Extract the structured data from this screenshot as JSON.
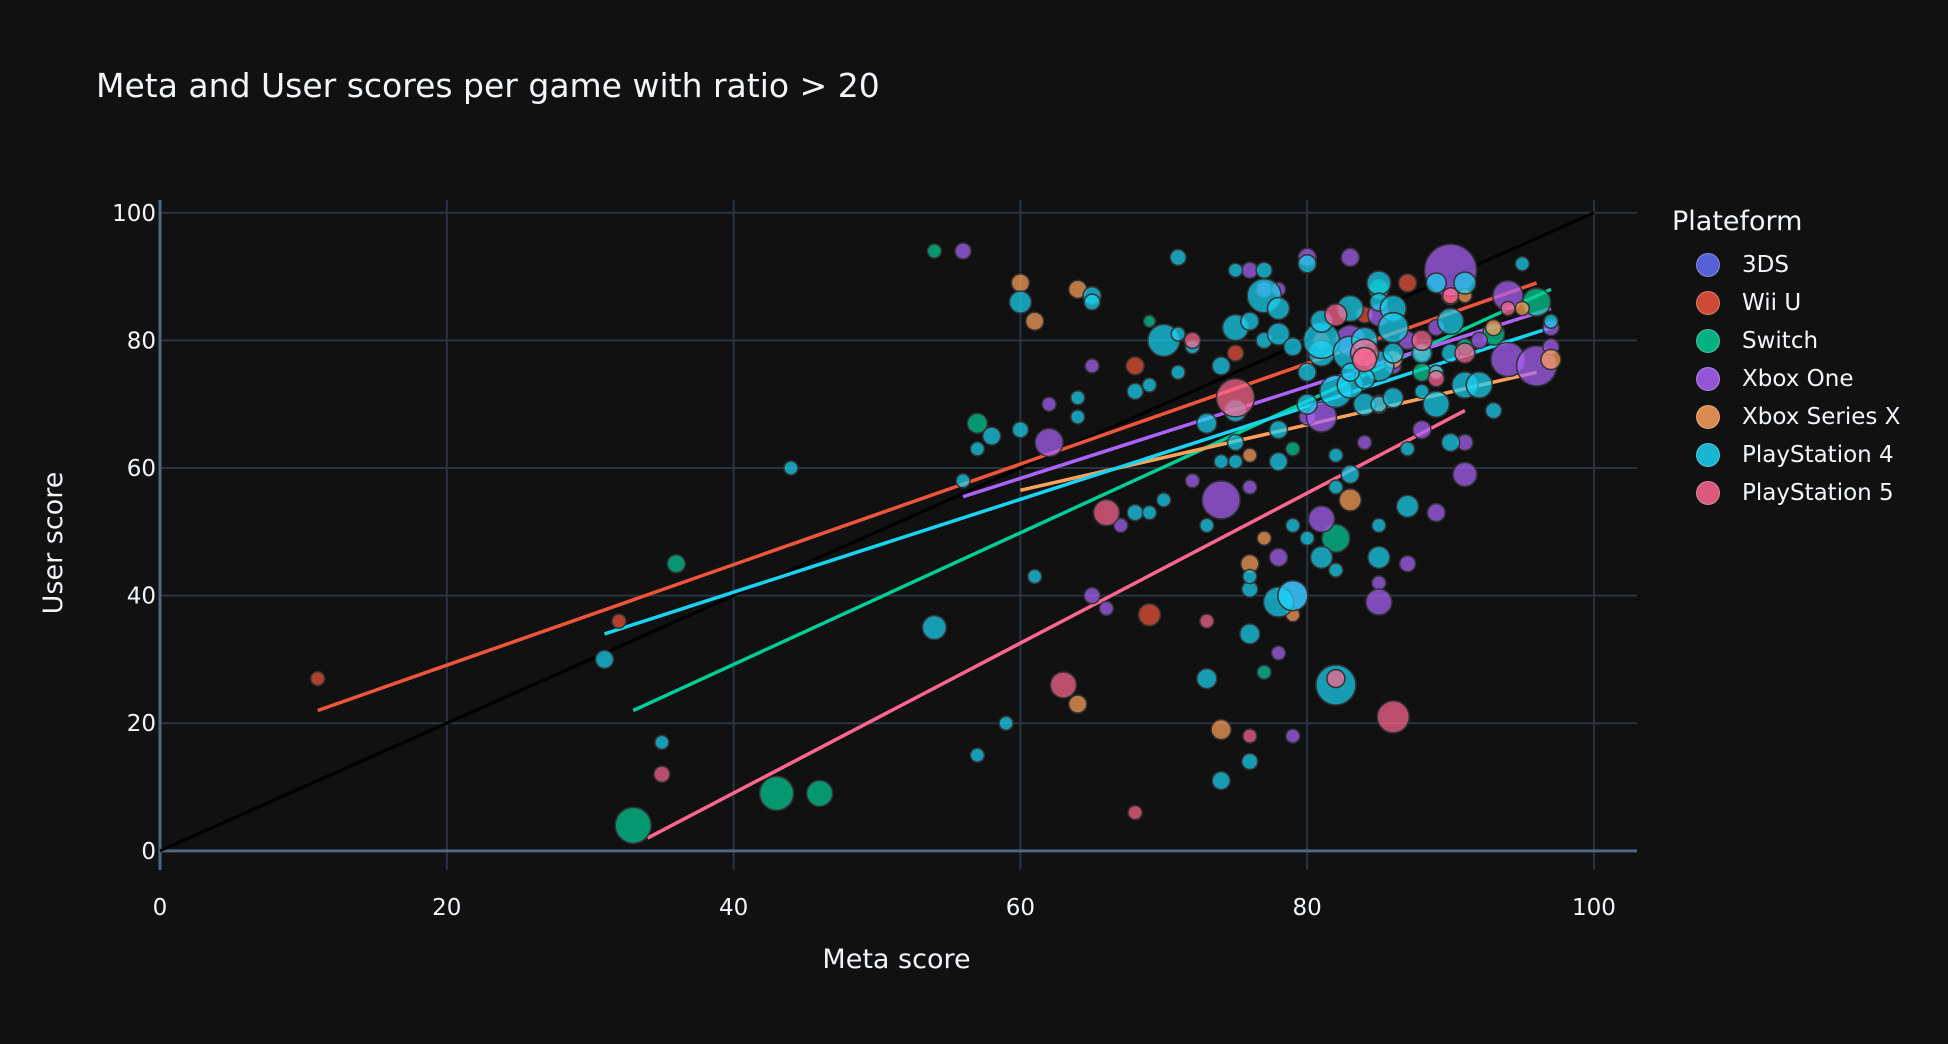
{
  "chart_data": {
    "type": "scatter",
    "title": "Meta and User scores per game with ratio > 20",
    "xlabel": "Meta score",
    "ylabel": "User score",
    "xlim": [
      0,
      103
    ],
    "ylim": [
      -3,
      102
    ],
    "xticks": [
      0,
      20,
      40,
      60,
      80,
      100
    ],
    "yticks": [
      0,
      20,
      40,
      60,
      80,
      100
    ],
    "grid": true,
    "legend_title": "Plateform",
    "legend_position": "right",
    "diagonal": {
      "x": [
        0,
        100
      ],
      "y": [
        0,
        100
      ],
      "color": "#000000"
    },
    "series": [
      {
        "name": "3DS",
        "color": "#636efa",
        "points": [],
        "trend": null
      },
      {
        "name": "Wii U",
        "color": "#ef553b",
        "points": [
          [
            11,
            27,
            14
          ],
          [
            32,
            36,
            14
          ],
          [
            69,
            37,
            22
          ],
          [
            68,
            76,
            18
          ],
          [
            75,
            78,
            16
          ],
          [
            81,
            80,
            16
          ],
          [
            84,
            84,
            16
          ],
          [
            87,
            89,
            18
          ],
          [
            90,
            87,
            18
          ],
          [
            85,
            70,
            18
          ]
        ],
        "trend": [
          [
            11,
            22
          ],
          [
            96,
            89
          ]
        ]
      },
      {
        "name": "Switch",
        "color": "#00cc96",
        "points": [
          [
            33,
            4,
            36
          ],
          [
            43,
            9,
            34
          ],
          [
            46,
            9,
            26
          ],
          [
            36,
            45,
            18
          ],
          [
            54,
            94,
            14
          ],
          [
            57,
            67,
            20
          ],
          [
            69,
            83,
            12
          ],
          [
            77,
            28,
            14
          ],
          [
            82,
            49,
            28
          ],
          [
            85,
            88,
            20
          ],
          [
            93,
            81,
            22
          ],
          [
            96,
            86,
            28
          ],
          [
            91,
            79,
            16
          ],
          [
            79,
            63,
            14
          ],
          [
            88,
            75,
            18
          ]
        ],
        "trend": [
          [
            33,
            22
          ],
          [
            97,
            88
          ]
        ]
      },
      {
        "name": "Xbox One",
        "color": "#ab63fa",
        "points": [
          [
            56,
            94,
            16
          ],
          [
            62,
            64,
            28
          ],
          [
            65,
            76,
            14
          ],
          [
            62,
            70,
            14
          ],
          [
            66,
            38,
            14
          ],
          [
            65,
            40,
            16
          ],
          [
            67,
            51,
            14
          ],
          [
            72,
            58,
            14
          ],
          [
            74,
            55,
            38
          ],
          [
            76,
            91,
            16
          ],
          [
            77,
            88,
            16
          ],
          [
            78,
            88,
            14
          ],
          [
            78,
            46,
            18
          ],
          [
            79,
            40,
            30
          ],
          [
            80,
            93,
            18
          ],
          [
            80,
            68,
            16
          ],
          [
            81,
            52,
            26
          ],
          [
            81,
            68,
            30
          ],
          [
            83,
            93,
            18
          ],
          [
            84,
            64,
            14
          ],
          [
            85,
            42,
            14
          ],
          [
            85,
            39,
            26
          ],
          [
            87,
            45,
            16
          ],
          [
            88,
            66,
            18
          ],
          [
            89,
            53,
            18
          ],
          [
            90,
            91,
            52
          ],
          [
            91,
            59,
            24
          ],
          [
            91,
            64,
            16
          ],
          [
            92,
            80,
            16
          ],
          [
            94,
            87,
            30
          ],
          [
            94,
            77,
            34
          ],
          [
            96,
            76,
            40
          ],
          [
            97,
            82,
            16
          ],
          [
            97,
            79,
            16
          ],
          [
            85,
            84,
            22
          ],
          [
            87,
            80,
            18
          ],
          [
            86,
            76,
            16
          ],
          [
            83,
            80,
            30
          ],
          [
            78,
            31,
            14
          ],
          [
            79,
            18,
            14
          ],
          [
            89,
            82,
            16
          ],
          [
            76,
            57,
            14
          ]
        ],
        "trend": [
          [
            56,
            55.5
          ],
          [
            97,
            85
          ]
        ]
      },
      {
        "name": "Xbox Series X",
        "color": "#ffa15a",
        "points": [
          [
            60,
            89,
            18
          ],
          [
            61,
            83,
            18
          ],
          [
            64,
            88,
            18
          ],
          [
            64,
            23,
            18
          ],
          [
            74,
            19,
            20
          ],
          [
            76,
            45,
            18
          ],
          [
            77,
            49,
            14
          ],
          [
            79,
            37,
            14
          ],
          [
            83,
            55,
            22
          ],
          [
            86,
            77,
            18
          ],
          [
            88,
            78,
            16
          ],
          [
            91,
            87,
            14
          ],
          [
            95,
            85,
            14
          ],
          [
            97,
            77,
            20
          ],
          [
            89,
            75,
            14
          ],
          [
            76,
            62,
            14
          ],
          [
            93,
            82,
            16
          ]
        ],
        "trend": [
          [
            60,
            56.5
          ],
          [
            96,
            75
          ]
        ]
      },
      {
        "name": "PlayStation 4",
        "color": "#19d3f3",
        "points": [
          [
            31,
            30,
            18
          ],
          [
            35,
            17,
            14
          ],
          [
            44,
            60,
            14
          ],
          [
            54,
            35,
            24
          ],
          [
            57,
            15,
            14
          ],
          [
            59,
            20,
            14
          ],
          [
            56,
            58,
            14
          ],
          [
            57,
            63,
            14
          ],
          [
            58,
            65,
            18
          ],
          [
            60,
            66,
            16
          ],
          [
            60,
            86,
            22
          ],
          [
            61,
            43,
            14
          ],
          [
            64,
            71,
            14
          ],
          [
            64,
            68,
            14
          ],
          [
            65,
            87,
            18
          ],
          [
            65,
            86,
            16
          ],
          [
            68,
            72,
            16
          ],
          [
            69,
            73,
            14
          ],
          [
            68,
            53,
            16
          ],
          [
            69,
            53,
            14
          ],
          [
            70,
            55,
            14
          ],
          [
            70,
            80,
            32
          ],
          [
            71,
            93,
            16
          ],
          [
            71,
            75,
            14
          ],
          [
            71,
            81,
            14
          ],
          [
            72,
            79,
            14
          ],
          [
            73,
            67,
            20
          ],
          [
            73,
            51,
            14
          ],
          [
            73,
            27,
            20
          ],
          [
            74,
            11,
            18
          ],
          [
            74,
            61,
            14
          ],
          [
            74,
            76,
            18
          ],
          [
            75,
            61,
            14
          ],
          [
            75,
            64,
            16
          ],
          [
            75,
            69,
            22
          ],
          [
            75,
            82,
            26
          ],
          [
            75,
            91,
            14
          ],
          [
            76,
            34,
            20
          ],
          [
            76,
            41,
            16
          ],
          [
            76,
            43,
            14
          ],
          [
            76,
            14,
            16
          ],
          [
            76,
            83,
            18
          ],
          [
            77,
            91,
            16
          ],
          [
            77,
            80,
            16
          ],
          [
            77,
            87,
            34
          ],
          [
            78,
            85,
            22
          ],
          [
            78,
            81,
            22
          ],
          [
            78,
            66,
            18
          ],
          [
            78,
            61,
            18
          ],
          [
            78,
            39,
            30
          ],
          [
            79,
            40,
            30
          ],
          [
            79,
            51,
            14
          ],
          [
            79,
            79,
            18
          ],
          [
            80,
            75,
            18
          ],
          [
            80,
            92,
            18
          ],
          [
            80,
            49,
            14
          ],
          [
            81,
            78,
            26
          ],
          [
            81,
            80,
            36
          ],
          [
            81,
            83,
            22
          ],
          [
            81,
            46,
            22
          ],
          [
            82,
            44,
            14
          ],
          [
            82,
            57,
            14
          ],
          [
            82,
            62,
            14
          ],
          [
            82,
            26,
            40
          ],
          [
            82,
            72,
            32
          ],
          [
            83,
            59,
            18
          ],
          [
            83,
            78,
            34
          ],
          [
            83,
            85,
            26
          ],
          [
            83,
            73,
            26
          ],
          [
            84,
            80,
            26
          ],
          [
            84,
            70,
            22
          ],
          [
            85,
            89,
            24
          ],
          [
            85,
            86,
            18
          ],
          [
            85,
            70,
            16
          ],
          [
            85,
            76,
            30
          ],
          [
            85,
            51,
            14
          ],
          [
            85,
            46,
            22
          ],
          [
            86,
            85,
            26
          ],
          [
            86,
            82,
            30
          ],
          [
            86,
            78,
            20
          ],
          [
            87,
            54,
            22
          ],
          [
            87,
            63,
            14
          ],
          [
            88,
            78,
            20
          ],
          [
            88,
            72,
            14
          ],
          [
            89,
            75,
            14
          ],
          [
            89,
            70,
            26
          ],
          [
            89,
            89,
            20
          ],
          [
            90,
            83,
            26
          ],
          [
            90,
            64,
            18
          ],
          [
            90,
            78,
            18
          ],
          [
            91,
            73,
            26
          ],
          [
            91,
            89,
            22
          ],
          [
            92,
            73,
            26
          ],
          [
            93,
            69,
            16
          ],
          [
            95,
            92,
            14
          ],
          [
            97,
            83,
            14
          ],
          [
            86,
            71,
            20
          ],
          [
            84,
            74,
            20
          ],
          [
            83,
            75,
            18
          ],
          [
            80,
            70,
            20
          ]
        ],
        "trend": [
          [
            31,
            34
          ],
          [
            97,
            82
          ]
        ]
      },
      {
        "name": "PlayStation 5",
        "color": "#ff6692",
        "points": [
          [
            35,
            12,
            16
          ],
          [
            63,
            26,
            26
          ],
          [
            66,
            53,
            26
          ],
          [
            68,
            6,
            14
          ],
          [
            72,
            80,
            16
          ],
          [
            73,
            36,
            14
          ],
          [
            75,
            71,
            38
          ],
          [
            76,
            18,
            14
          ],
          [
            82,
            27,
            18
          ],
          [
            82,
            84,
            22
          ],
          [
            84,
            78,
            28
          ],
          [
            86,
            21,
            32
          ],
          [
            84,
            77,
            24
          ],
          [
            88,
            80,
            20
          ],
          [
            89,
            74,
            16
          ],
          [
            90,
            87,
            16
          ],
          [
            91,
            78,
            20
          ],
          [
            94,
            85,
            14
          ]
        ],
        "trend": [
          [
            34,
            2
          ],
          [
            91,
            69
          ]
        ]
      }
    ]
  }
}
